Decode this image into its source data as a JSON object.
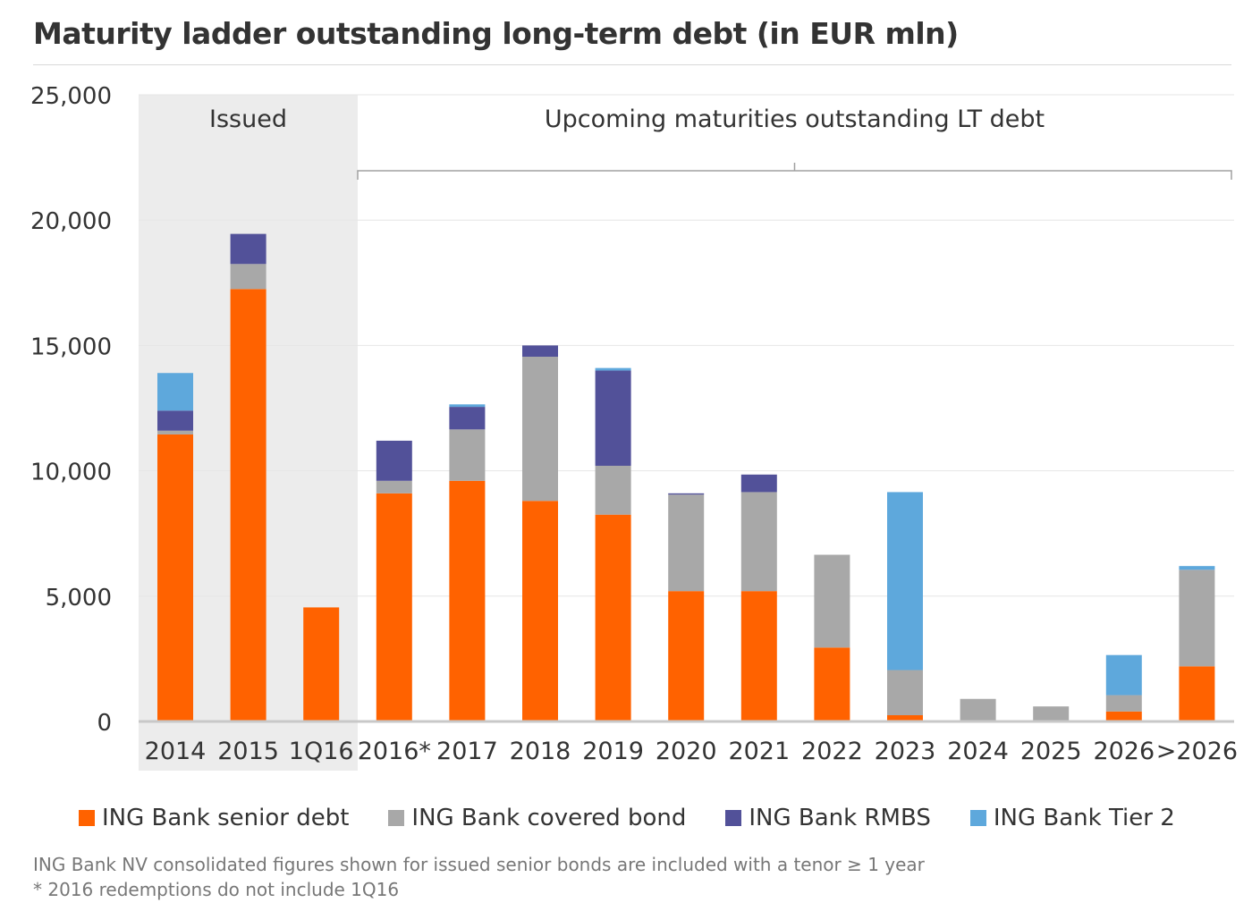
{
  "title": "Maturity ladder outstanding long-term debt (in EUR mln)",
  "chart_data": {
    "type": "bar",
    "stacked": true,
    "categories": [
      "2014",
      "2015",
      "1Q16",
      "2016*",
      "2017",
      "2018",
      "2019",
      "2020",
      "2021",
      "2022",
      "2023",
      "2024",
      "2025",
      "2026",
      ">2026"
    ],
    "series": [
      {
        "name": "ING Bank senior debt",
        "color": "#ff6200",
        "values": [
          11450,
          17250,
          4550,
          9100,
          9600,
          8800,
          8250,
          5200,
          5200,
          2950,
          250,
          0,
          0,
          400,
          2200
        ]
      },
      {
        "name": "ING Bank covered bond",
        "color": "#a8a8a8",
        "values": [
          150,
          1000,
          0,
          500,
          2050,
          5750,
          1950,
          3850,
          3950,
          3700,
          1800,
          900,
          600,
          650,
          3850
        ]
      },
      {
        "name": "ING Bank RMBS",
        "color": "#525199",
        "values": [
          800,
          1200,
          0,
          1600,
          900,
          450,
          3800,
          50,
          700,
          0,
          0,
          0,
          0,
          0,
          0
        ]
      },
      {
        "name": "ING Bank Tier 2",
        "color": "#5ea8dc",
        "values": [
          1500,
          0,
          0,
          0,
          100,
          0,
          100,
          0,
          0,
          0,
          7100,
          0,
          0,
          1600,
          150
        ]
      }
    ],
    "ylim": [
      0,
      25000
    ],
    "yticks": [
      0,
      5000,
      10000,
      15000,
      20000,
      25000
    ],
    "ytick_labels": [
      "0",
      "5,000",
      "10,000",
      "15,000",
      "20,000",
      "25,000"
    ],
    "grid": true,
    "legend_position": "bottom",
    "annotations": [
      {
        "text": "Issued",
        "applies_to": [
          "2014",
          "2015",
          "1Q16"
        ],
        "shaded": true,
        "shade_color": "#ececec"
      },
      {
        "text": "Upcoming maturities outstanding LT debt",
        "applies_to": [
          "2016*",
          "2017",
          "2018",
          "2019",
          "2020",
          "2021",
          "2022",
          "2023",
          "2024",
          "2025",
          "2026",
          ">2026"
        ],
        "bracket": true
      }
    ]
  },
  "footnotes": [
    "ING Bank NV consolidated figures shown for issued senior bonds are included with a tenor ≥ 1 year",
    "* 2016 redemptions do not include 1Q16"
  ]
}
